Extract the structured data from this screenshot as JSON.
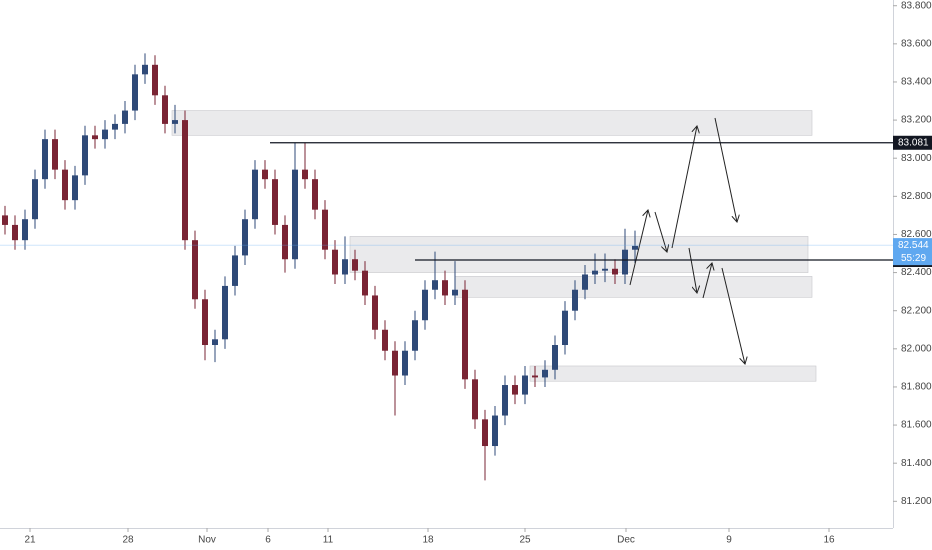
{
  "chart_data": {
    "type": "candlestick",
    "open": [
      82.7,
      82.65,
      82.57,
      82.68,
      82.89,
      83.1,
      82.94,
      82.78,
      82.91,
      83.12,
      83.1,
      83.15,
      83.18,
      83.25,
      83.44,
      83.49,
      83.33,
      83.18,
      83.2,
      82.57,
      82.26,
      82.02,
      82.05,
      82.33,
      82.49,
      82.68,
      82.94,
      82.89,
      82.65,
      82.47,
      82.94,
      82.89,
      82.73,
      82.52,
      82.39,
      82.47,
      82.41,
      82.28,
      82.1,
      81.99,
      81.86,
      81.99,
      82.15,
      82.31,
      82.36,
      82.28,
      82.31,
      81.84,
      81.63,
      81.49,
      81.65,
      81.81,
      81.76,
      81.86,
      81.85,
      81.89,
      82.02,
      82.2,
      82.31,
      82.39,
      82.41,
      82.42,
      82.39,
      82.52
    ],
    "high": [
      82.75,
      82.7,
      82.73,
      82.94,
      83.15,
      83.15,
      82.99,
      82.96,
      83.17,
      83.17,
      83.2,
      83.23,
      83.3,
      83.49,
      83.55,
      83.54,
      83.38,
      83.28,
      83.25,
      82.62,
      82.31,
      82.1,
      82.38,
      82.54,
      82.73,
      82.99,
      82.99,
      82.94,
      82.7,
      83.08,
      83.08,
      82.94,
      82.78,
      82.57,
      82.59,
      82.52,
      82.46,
      82.33,
      82.15,
      82.04,
      82.04,
      82.2,
      82.36,
      82.51,
      82.41,
      82.46,
      82.36,
      81.89,
      81.68,
      81.7,
      81.86,
      81.86,
      81.91,
      81.91,
      81.94,
      82.07,
      82.25,
      82.36,
      82.44,
      82.5,
      82.5,
      82.47,
      82.63,
      82.62
    ],
    "low": [
      82.6,
      82.52,
      82.52,
      82.63,
      82.84,
      82.89,
      82.73,
      82.73,
      82.86,
      83.05,
      83.05,
      83.1,
      83.13,
      83.2,
      83.39,
      83.28,
      83.13,
      83.13,
      82.52,
      82.21,
      81.94,
      81.93,
      82.0,
      82.28,
      82.44,
      82.63,
      82.84,
      82.6,
      82.4,
      82.42,
      82.84,
      82.68,
      82.47,
      82.34,
      82.34,
      82.36,
      82.23,
      82.05,
      81.94,
      81.65,
      81.81,
      81.94,
      82.1,
      82.26,
      82.23,
      82.23,
      81.79,
      81.58,
      81.31,
      81.44,
      81.6,
      81.71,
      81.71,
      81.8,
      81.8,
      81.84,
      81.97,
      82.15,
      82.26,
      82.34,
      82.35,
      82.34,
      82.34,
      82.45
    ],
    "close": [
      82.65,
      82.57,
      82.68,
      82.89,
      83.1,
      82.94,
      82.78,
      82.91,
      83.12,
      83.1,
      83.15,
      83.18,
      83.25,
      83.44,
      83.49,
      83.33,
      83.18,
      83.2,
      82.57,
      82.26,
      82.02,
      82.05,
      82.33,
      82.49,
      82.68,
      82.94,
      82.89,
      82.65,
      82.47,
      82.94,
      82.89,
      82.73,
      82.52,
      82.39,
      82.47,
      82.41,
      82.28,
      82.1,
      81.99,
      81.86,
      81.99,
      82.15,
      82.31,
      82.36,
      82.28,
      82.31,
      81.84,
      81.63,
      81.49,
      81.65,
      81.81,
      81.76,
      81.86,
      81.85,
      81.89,
      82.02,
      82.2,
      82.31,
      82.39,
      82.41,
      82.42,
      82.39,
      82.52,
      82.54
    ],
    "up_color": "#2f4a78",
    "down_color": "#7a2434",
    "xlim": [
      0,
      89.3
    ],
    "ylim": [
      81.06,
      83.83
    ],
    "xticks": [
      {
        "value": 3.0,
        "label": "21"
      },
      {
        "value": 12.8,
        "label": "28"
      },
      {
        "value": 20.7,
        "label": "Nov"
      },
      {
        "value": 26.8,
        "label": "6"
      },
      {
        "value": 32.8,
        "label": "11"
      },
      {
        "value": 42.8,
        "label": "18"
      },
      {
        "value": 52.5,
        "label": "25"
      },
      {
        "value": 62.6,
        "label": "Dec"
      },
      {
        "value": 72.9,
        "label": "9"
      },
      {
        "value": 82.9,
        "label": "16"
      }
    ],
    "yticks": [
      {
        "value": 81.2,
        "label": "81.200"
      },
      {
        "value": 81.4,
        "label": "81.400"
      },
      {
        "value": 81.6,
        "label": "81.600"
      },
      {
        "value": 81.8,
        "label": "81.800"
      },
      {
        "value": 82.0,
        "label": "82.000"
      },
      {
        "value": 82.2,
        "label": "82.200"
      },
      {
        "value": 82.4,
        "label": "82.400"
      },
      {
        "value": 82.6,
        "label": "82.600"
      },
      {
        "value": 82.8,
        "label": "82.800"
      },
      {
        "value": 83.0,
        "label": "83.000"
      },
      {
        "value": 83.2,
        "label": "83.200"
      },
      {
        "value": 83.4,
        "label": "83.400"
      },
      {
        "value": 83.6,
        "label": "83.600"
      },
      {
        "value": 83.8,
        "label": "83.800"
      }
    ],
    "zones": [
      {
        "x": [
          17.2,
          81.2
        ],
        "y": [
          83.12,
          83.25
        ]
      },
      {
        "x": [
          35.0,
          80.8
        ],
        "y": [
          82.4,
          82.59
        ]
      },
      {
        "x": [
          45.5,
          81.2
        ],
        "y": [
          82.27,
          82.38
        ]
      },
      {
        "x": [
          53.0,
          81.6
        ],
        "y": [
          81.83,
          81.91
        ]
      }
    ],
    "levels": [
      {
        "value": 83.081,
        "x_start": 27.0,
        "color": "#131722"
      },
      {
        "value": 82.466,
        "x_start": 41.5,
        "color": "#131722"
      }
    ],
    "last_price": 82.544,
    "last_price_color": "#5fa8f0",
    "countdown": "55:29"
  }
}
